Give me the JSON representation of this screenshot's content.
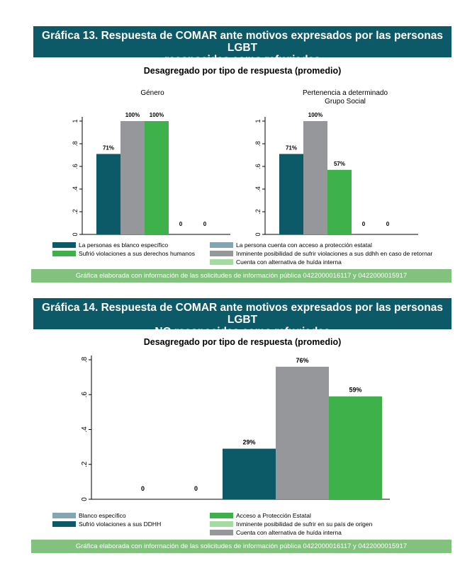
{
  "g13": {
    "title_line1": "Gráfica 13. Respuesta de COMAR ante motivos expresados por las personas LGBT",
    "title_line2": "reconocidas como refugiadas",
    "subtitle": "Desagregado por tipo de respuesta (promedio)",
    "source": "Gráfica elaborada con información de las solicitudes de información pública 0422000016117 y 0422000015917",
    "legend": [
      {
        "label": "La personas es blanco específico",
        "color": "#0c5a68"
      },
      {
        "label": "La persona cuenta con acceso a protección estatal",
        "color": "#84a6b2"
      },
      {
        "label": "Sufrió violaciones a sus derechos humanos",
        "color": "#3fb14a"
      },
      {
        "label": "Inminente posibilidad de sufrir violaciones a sus ddhh en caso de retornar",
        "color": "#96979a"
      },
      {
        "label": "Cuenta con alternativa de huída interna",
        "color": "#a4dba0"
      }
    ]
  },
  "g14": {
    "title_line1": "Gráfica 14. Respuesta de COMAR ante motivos expresados por las personas LGBT",
    "title_line2": "NO reconocidas como refugiadas",
    "subtitle": "Desagregado por tipo de respuesta (promedio)",
    "source": "Gráfica elaborada con información de las solicitudes de información pública 0422000016117 y 0422000015917",
    "legend": [
      {
        "label": "Blanco específico",
        "color": "#84a6b2"
      },
      {
        "label": "Acceso a Protección Estatal",
        "color": "#3fb14a"
      },
      {
        "label": "Sufrió violaciones a sus DDHH",
        "color": "#0c5a68"
      },
      {
        "label": "Inminente posibilidad de sufrir en su país de origen",
        "color": "#a4dba0"
      },
      {
        "label": "Cuenta con alternativa de huída interna",
        "color": "#96979a"
      }
    ]
  },
  "chart_data": [
    {
      "type": "bar",
      "title": "Género",
      "categories": [
        "La personas es blanco específico",
        "Inminente posibilidad de sufrir violaciones a sus ddhh en caso de retornar",
        "Sufrió violaciones a sus derechos humanos",
        "La persona cuenta con acceso a protección estatal",
        "Cuenta con alternativa de huída interna"
      ],
      "values": [
        0.71,
        1.0,
        1.0,
        0,
        0
      ],
      "data_labels": [
        "71%",
        "100%",
        "100%",
        "0",
        "0"
      ],
      "colors": [
        "#0c5a68",
        "#96979a",
        "#3fb14a",
        "#84a6b2",
        "#a4dba0"
      ],
      "ylim": [
        0,
        1.0
      ],
      "yticks": [
        "0",
        ".2",
        ".4",
        ".6",
        ".8",
        "1"
      ]
    },
    {
      "type": "bar",
      "title": "Pertenencia a determinado",
      "subtitle": "Grupo Social",
      "categories": [
        "La personas es blanco específico",
        "Inminente posibilidad de sufrir violaciones a sus ddhh en caso de retornar",
        "Sufrió violaciones a sus derechos humanos",
        "La persona cuenta con acceso a protección estatal",
        "Cuenta con alternativa de huída interna"
      ],
      "values": [
        0.71,
        1.0,
        0.57,
        0,
        0
      ],
      "data_labels": [
        "71%",
        "100%",
        "57%",
        "0",
        "0"
      ],
      "colors": [
        "#0c5a68",
        "#96979a",
        "#3fb14a",
        "#84a6b2",
        "#a4dba0"
      ],
      "ylim": [
        0,
        1.0
      ],
      "yticks": [
        "0",
        ".2",
        ".4",
        ".6",
        ".8",
        "1"
      ]
    },
    {
      "type": "bar",
      "categories": [
        "Blanco específico",
        "Inminente posibilidad de sufrir en su país de origen",
        "Sufrió violaciones a sus DDHH",
        "Cuenta con alternativa de huída interna",
        "Acceso a Protección Estatal"
      ],
      "values": [
        0,
        0,
        0.29,
        0.76,
        0.59
      ],
      "data_labels": [
        "0",
        "0",
        "29%",
        "76%",
        "59%"
      ],
      "colors": [
        "#84a6b2",
        "#a4dba0",
        "#0c5a68",
        "#96979a",
        "#3fb14a"
      ],
      "ylim": [
        0,
        0.8
      ],
      "yticks": [
        "0",
        ".2",
        ".4",
        ".6",
        ".8"
      ]
    }
  ]
}
